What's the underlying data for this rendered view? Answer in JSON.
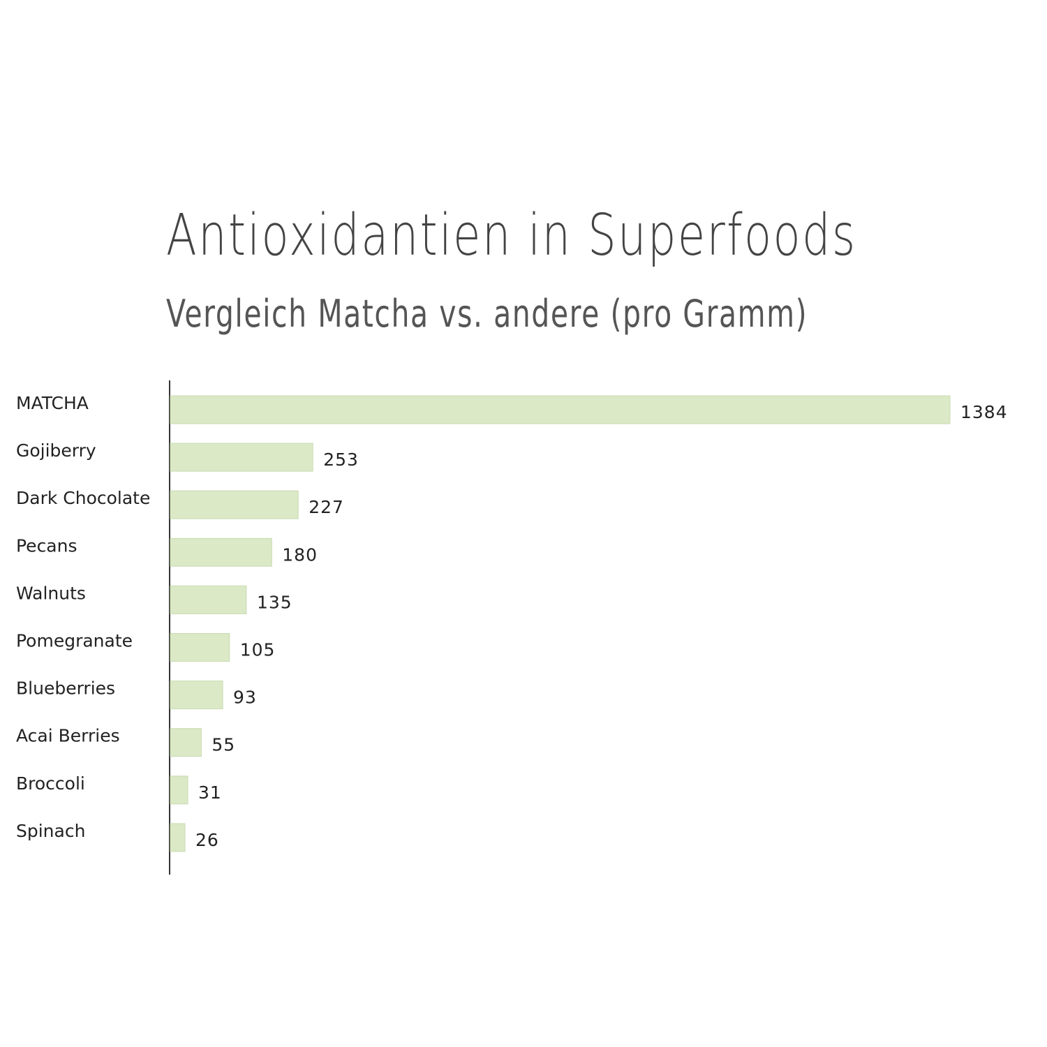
{
  "chart_data": {
    "type": "bar",
    "orientation": "horizontal",
    "title": "Antioxidantien in Superfoods",
    "subtitle": "Vergleich Matcha vs. andere (pro Gramm)",
    "categories": [
      "MATCHA",
      "Gojiberry",
      "Dark Chocolate",
      "Pecans",
      "Walnuts",
      "Pomegranate",
      "Blueberries",
      "Acai Berries",
      "Broccoli",
      "Spinach"
    ],
    "values": [
      1384,
      253,
      227,
      180,
      135,
      105,
      93,
      55,
      31,
      26
    ],
    "value_labels": [
      "1384",
      "253",
      "227",
      "180",
      "135",
      "105",
      "93",
      "55",
      "31",
      "26"
    ],
    "xlim": [
      0,
      1384
    ],
    "grid": false,
    "legend": "none",
    "colors": {
      "bar": "#dbe9c6",
      "bar_edge": "#c9dab2",
      "axis": "#333333",
      "text": "#222222"
    }
  }
}
